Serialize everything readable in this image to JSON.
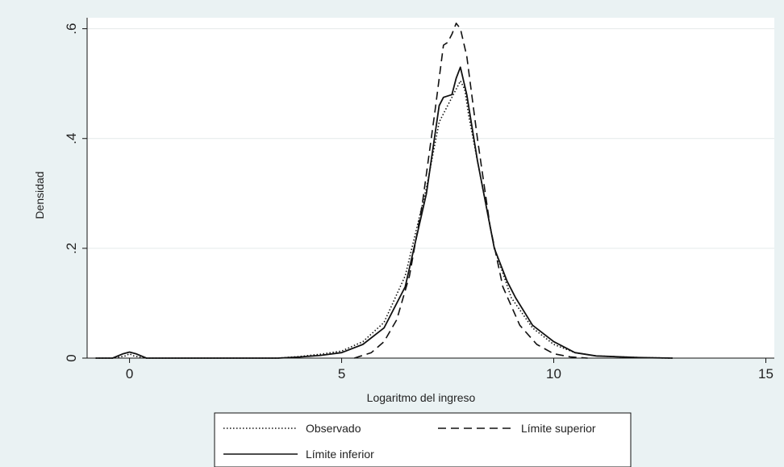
{
  "chart_data": {
    "type": "line",
    "title": "",
    "xlabel": "Logaritmo del ingreso",
    "ylabel": "Densidad",
    "xlim": [
      -1,
      15.2
    ],
    "ylim": [
      0,
      0.62
    ],
    "x_ticks": [
      0,
      5,
      10,
      15
    ],
    "x_tick_labels": [
      "0",
      "5",
      "10",
      "15"
    ],
    "y_ticks": [
      0,
      0.2,
      0.4,
      0.6
    ],
    "y_tick_labels": [
      "0",
      ".2",
      ".4",
      ".6"
    ],
    "grid": "horizontal",
    "legend_position": "bottom",
    "colors": {
      "background": "#eaf2f3",
      "plot": "#ffffff",
      "line": "#111111",
      "grid": "#e4eaea"
    },
    "series": [
      {
        "name": "Observado",
        "style": "dotted",
        "points": [
          [
            -0.8,
            0
          ],
          [
            -0.4,
            0
          ],
          [
            -0.1,
            0.004
          ],
          [
            0,
            0.008
          ],
          [
            0.1,
            0.004
          ],
          [
            0.4,
            0
          ],
          [
            2,
            0
          ],
          [
            3.5,
            0
          ],
          [
            4,
            0.003
          ],
          [
            4.5,
            0.007
          ],
          [
            5,
            0.013
          ],
          [
            5.5,
            0.03
          ],
          [
            6,
            0.065
          ],
          [
            6.5,
            0.15
          ],
          [
            7,
            0.31
          ],
          [
            7.3,
            0.43
          ],
          [
            7.5,
            0.46
          ],
          [
            7.7,
            0.49
          ],
          [
            7.8,
            0.505
          ],
          [
            7.9,
            0.49
          ],
          [
            8,
            0.44
          ],
          [
            8.3,
            0.32
          ],
          [
            8.6,
            0.2
          ],
          [
            9,
            0.11
          ],
          [
            9.5,
            0.055
          ],
          [
            10,
            0.025
          ],
          [
            10.5,
            0.01
          ],
          [
            11,
            0.004
          ],
          [
            12,
            0.001
          ],
          [
            12.8,
            0
          ]
        ]
      },
      {
        "name": "Límite superior",
        "style": "dashed",
        "points": [
          [
            5.3,
            0
          ],
          [
            5.7,
            0.01
          ],
          [
            6,
            0.03
          ],
          [
            6.3,
            0.07
          ],
          [
            6.6,
            0.15
          ],
          [
            6.9,
            0.28
          ],
          [
            7.2,
            0.45
          ],
          [
            7.4,
            0.57
          ],
          [
            7.5,
            0.575
          ],
          [
            7.6,
            0.59
          ],
          [
            7.7,
            0.61
          ],
          [
            7.8,
            0.6
          ],
          [
            7.95,
            0.55
          ],
          [
            8.2,
            0.4
          ],
          [
            8.5,
            0.24
          ],
          [
            8.8,
            0.13
          ],
          [
            9.2,
            0.06
          ],
          [
            9.6,
            0.025
          ],
          [
            10,
            0.008
          ],
          [
            10.4,
            0.002
          ],
          [
            10.8,
            0
          ]
        ]
      },
      {
        "name": "Límite inferior",
        "style": "solid",
        "points": [
          [
            -0.8,
            0
          ],
          [
            -0.4,
            0
          ],
          [
            -0.15,
            0.008
          ],
          [
            0,
            0.011
          ],
          [
            0.15,
            0.008
          ],
          [
            0.4,
            0
          ],
          [
            2,
            0
          ],
          [
            3.5,
            0
          ],
          [
            4,
            0.002
          ],
          [
            4.5,
            0.005
          ],
          [
            5,
            0.01
          ],
          [
            5.5,
            0.025
          ],
          [
            6,
            0.055
          ],
          [
            6.5,
            0.13
          ],
          [
            7,
            0.3
          ],
          [
            7.3,
            0.46
          ],
          [
            7.4,
            0.475
          ],
          [
            7.6,
            0.48
          ],
          [
            7.7,
            0.51
          ],
          [
            7.8,
            0.53
          ],
          [
            7.95,
            0.48
          ],
          [
            8.2,
            0.36
          ],
          [
            8.6,
            0.2
          ],
          [
            8.9,
            0.14
          ],
          [
            9.1,
            0.11
          ],
          [
            9.5,
            0.06
          ],
          [
            10,
            0.03
          ],
          [
            10.5,
            0.01
          ],
          [
            11,
            0.004
          ],
          [
            12,
            0.001
          ],
          [
            12.8,
            0
          ]
        ]
      }
    ]
  }
}
